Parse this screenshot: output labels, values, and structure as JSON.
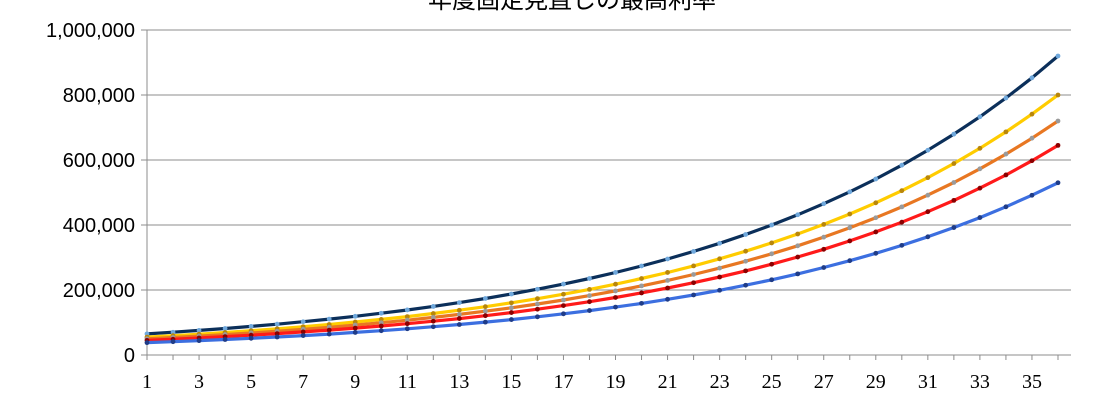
{
  "chart_data": {
    "type": "line",
    "title": "年度固定見直しの最高利率",
    "xlabel": "",
    "ylabel": "",
    "x": [
      1,
      2,
      3,
      4,
      5,
      6,
      7,
      8,
      9,
      10,
      11,
      12,
      13,
      14,
      15,
      16,
      17,
      18,
      19,
      20,
      21,
      22,
      23,
      24,
      25,
      26,
      27,
      28,
      29,
      30,
      31,
      32,
      33,
      34,
      35,
      36
    ],
    "x_tick_labels": [
      "1",
      "3",
      "5",
      "7",
      "9",
      "11",
      "13",
      "15",
      "17",
      "19",
      "21",
      "23",
      "25",
      "27",
      "29",
      "31",
      "33",
      "35"
    ],
    "y_tick_labels": [
      "0",
      "200,000",
      "400,000",
      "600,000",
      "800,000",
      "1,000,000"
    ],
    "ylim": [
      0,
      1000000
    ],
    "grid": true,
    "legend": "none",
    "series": [
      {
        "color": "#0b2f5a",
        "marker_color": "#6fa8dc",
        "start": 65000,
        "end": 920000
      },
      {
        "color": "#ffcc00",
        "marker_color": "#b8860b",
        "start": 55000,
        "end": 800000
      },
      {
        "color": "#e87722",
        "marker_color": "#9a9a9a",
        "start": 50000,
        "end": 720000
      },
      {
        "color": "#ff1a1a",
        "marker_color": "#8b0000",
        "start": 45000,
        "end": 645000
      },
      {
        "color": "#3c6fe0",
        "marker_color": "#1f3c88",
        "start": 38000,
        "end": 530000
      }
    ]
  }
}
